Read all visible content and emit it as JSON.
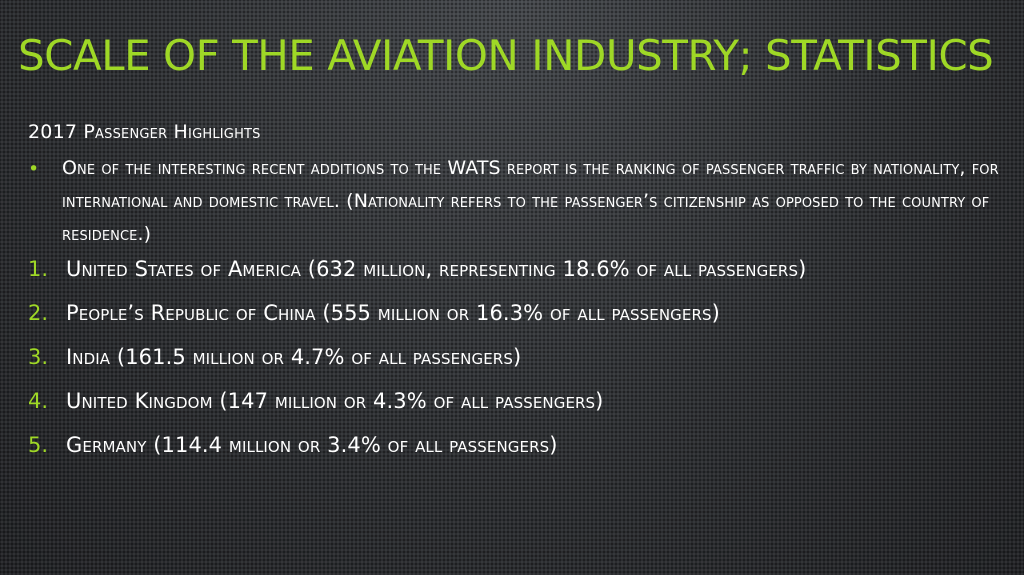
{
  "slide": {
    "title": "Scale of the Aviation Industry; Statistics",
    "subheading": "2017 Passenger Highlights",
    "bullet_text": "One of the interesting recent additions to the WATS report is the ranking of passenger traffic by nationality, for international and domestic travel. (Nationality refers to the passenger’s citizenship as opposed to the country of residence.)",
    "ranking": [
      {
        "number": "1.",
        "text": "United States of America (632 million, representing 18.6% of all passengers)"
      },
      {
        "number": "2.",
        "text": "People’s Republic of China (555 million or 16.3% of all passengers)"
      },
      {
        "number": "3.",
        "text": "India (161.5 million or 4.7% of all passengers)"
      },
      {
        "number": "4.",
        "text": "United Kingdom (147 million or 4.3% of all passengers)"
      },
      {
        "number": "5.",
        "text": "Germany (114.4 million or 3.4% of all passengers)"
      }
    ]
  },
  "colors": {
    "accent": "#9fd826",
    "text": "#ffffff",
    "background": "#2c2e31"
  }
}
